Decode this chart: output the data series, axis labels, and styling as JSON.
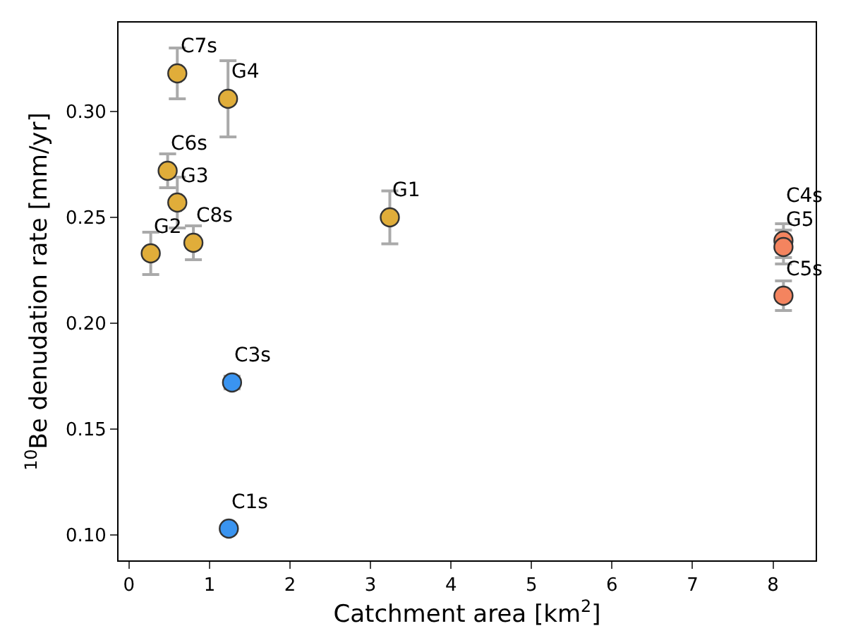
{
  "chart_data": {
    "type": "scatter",
    "xlabel": "Catchment area [km$^{2}$]",
    "ylabel": "$^{10}$Be denudation rate [mm/yr]",
    "x": [
      0.6,
      1.23,
      0.48,
      0.6,
      0.27,
      0.8,
      3.24,
      1.28,
      1.24,
      8.13,
      8.13,
      8.13
    ],
    "values": [
      0.318,
      0.306,
      0.272,
      0.257,
      0.233,
      0.238,
      0.25,
      0.172,
      0.103,
      0.239,
      0.236,
      0.213
    ],
    "errors": [
      0.012,
      0.018,
      0.008,
      0.012,
      0.01,
      0.008,
      0.0125,
      0.003,
      0.001,
      0.008,
      0.008,
      0.007
    ],
    "colors": [
      "#e0ad3a",
      "#e0ad3a",
      "#e0ad3a",
      "#e0ad3a",
      "#e0ad3a",
      "#e0ad3a",
      "#e0ad3a",
      "#3a94f0",
      "#3a94f0",
      "#f4845f",
      "#f4845f",
      "#f4845f"
    ],
    "annotations": [
      {
        "text": "C7s",
        "x": 0.6,
        "y": 0.318
      },
      {
        "text": "G4",
        "x": 1.23,
        "y": 0.306
      },
      {
        "text": "C6s",
        "x": 0.48,
        "y": 0.272
      },
      {
        "text": "G3",
        "x": 0.6,
        "y": 0.257
      },
      {
        "text": "G2",
        "x": 0.27,
        "y": 0.233
      },
      {
        "text": "C8s",
        "x": 0.8,
        "y": 0.238
      },
      {
        "text": "G1",
        "x": 3.24,
        "y": 0.25
      },
      {
        "text": "C3s",
        "x": 1.28,
        "y": 0.172
      },
      {
        "text": "C1s",
        "x": 1.24,
        "y": 0.103
      },
      {
        "text": "C4s",
        "x": 8.13,
        "y": 0.239
      },
      {
        "text": "G5",
        "x": 8.13,
        "y": 0.236
      },
      {
        "text": "C5s",
        "x": 8.13,
        "y": 0.213
      }
    ],
    "marker": "circle",
    "xlim": [
      -0.13,
      8.53
    ],
    "ylim": [
      0.088,
      0.342
    ],
    "xticks": [
      0,
      1,
      2,
      3,
      4,
      5,
      6,
      7,
      8
    ],
    "yticks": [
      {
        "value": 0.1,
        "label": "0.10"
      },
      {
        "value": 0.15,
        "label": "0.15"
      },
      {
        "value": 0.2,
        "label": "0.20"
      },
      {
        "value": 0.25,
        "label": "0.25"
      },
      {
        "value": 0.3,
        "label": "0.30"
      }
    ]
  }
}
